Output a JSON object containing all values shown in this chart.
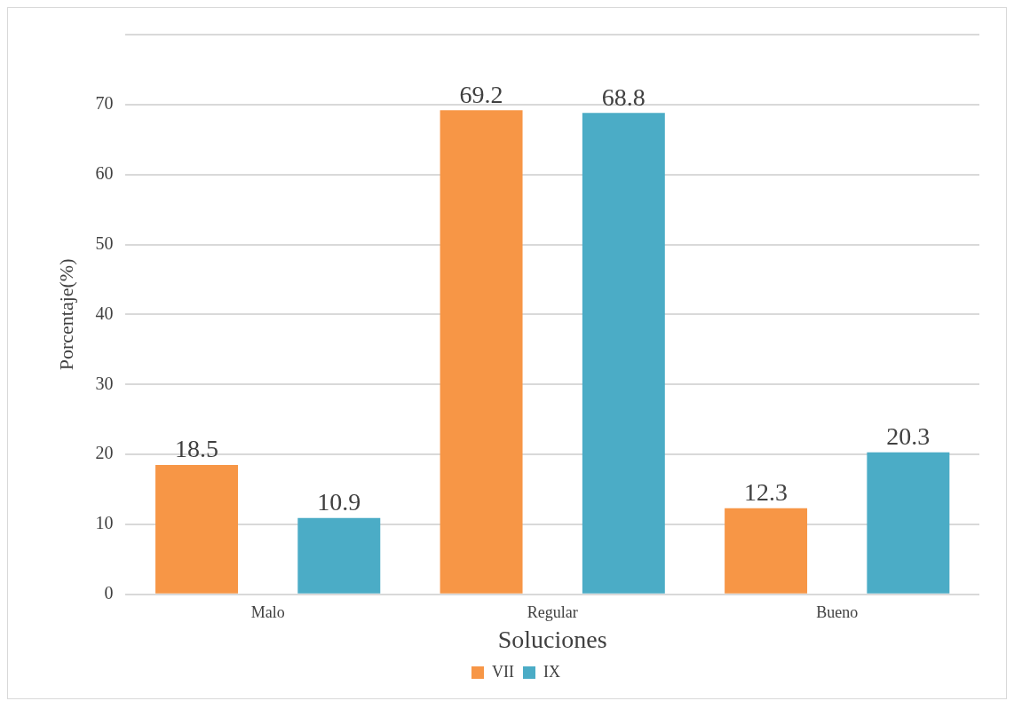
{
  "chart_data": {
    "type": "bar",
    "xlabel": "Soluciones",
    "ylabel": "Porcentaje(%)",
    "categories": [
      "Malo",
      "Regular",
      "Bueno"
    ],
    "series": [
      {
        "name": "VII",
        "color": "#f79646",
        "values": [
          18.5,
          69.2,
          12.3
        ]
      },
      {
        "name": "IX",
        "color": "#4bacc6",
        "values": [
          10.9,
          68.8,
          20.3
        ]
      }
    ],
    "ylim": [
      0,
      80
    ],
    "yticks": [
      0,
      10,
      20,
      30,
      40,
      50,
      60,
      70,
      {
        "value": 80,
        "label": null
      }
    ],
    "grid": "y",
    "legend": "bottom",
    "data_labels": true
  }
}
